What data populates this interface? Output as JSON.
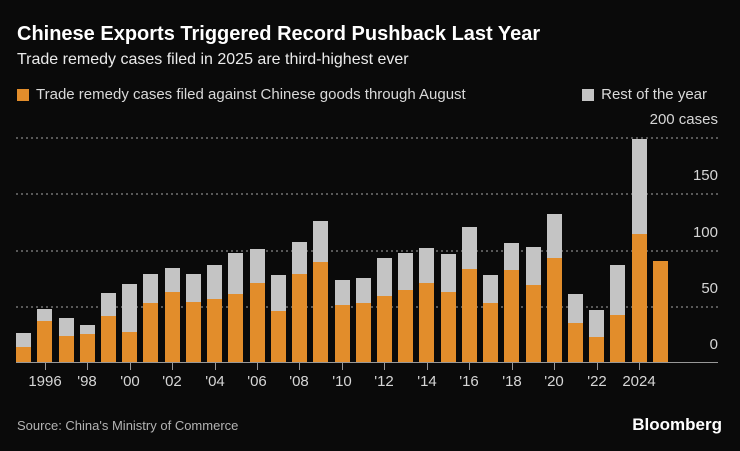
{
  "chart_data": {
    "type": "bar",
    "stacked": true,
    "title": "Chinese Exports Triggered Record Pushback Last Year",
    "subtitle": "Trade remedy cases filed in 2025 are third-highest ever",
    "unit": "cases",
    "categories": [
      1995,
      1996,
      1997,
      1998,
      1999,
      2000,
      2001,
      2002,
      2003,
      2004,
      2005,
      2006,
      2007,
      2008,
      2009,
      2010,
      2011,
      2012,
      2013,
      2014,
      2015,
      2016,
      2017,
      2018,
      2019,
      2020,
      2021,
      2022,
      2023,
      2024,
      2025
    ],
    "series": [
      {
        "name": "Trade remedy cases filed against Chinese goods through August",
        "color": "#E28D2B",
        "values": [
          13,
          36,
          23,
          25,
          41,
          27,
          52,
          62,
          53,
          56,
          60,
          70,
          45,
          78,
          89,
          51,
          52,
          59,
          64,
          70,
          62,
          83,
          52,
          82,
          68,
          92,
          35,
          22,
          42,
          114,
          90
        ]
      },
      {
        "name": "Rest of the year",
        "color": "#C4C4C4",
        "values": [
          12,
          11,
          16,
          8,
          20,
          43,
          26,
          21,
          25,
          30,
          36,
          30,
          32,
          28,
          36,
          22,
          22,
          34,
          33,
          31,
          34,
          37,
          25,
          24,
          34,
          39,
          26,
          24,
          44,
          84,
          0
        ]
      }
    ],
    "ylim": [
      0,
      200
    ],
    "yticks": [
      0,
      50,
      100,
      150,
      200
    ],
    "ytick_labels": [
      "0",
      "50",
      "100",
      "150",
      "200 cases"
    ],
    "xticks": [
      1996,
      1998,
      2000,
      2002,
      2004,
      2006,
      2008,
      2010,
      2012,
      2014,
      2016,
      2018,
      2020,
      2022,
      2024
    ],
    "xtick_labels": [
      "1996",
      "'98",
      "'00",
      "'02",
      "'04",
      "'06",
      "'08",
      "'10",
      "'12",
      "'14",
      "'16",
      "'18",
      "'20",
      "'22",
      "2024"
    ],
    "legend_position": "top",
    "grid": "horizontal-dotted",
    "background": "#0a0a0a"
  },
  "footer": {
    "source": "Source: China's Ministry of Commerce",
    "brand": "Bloomberg"
  }
}
